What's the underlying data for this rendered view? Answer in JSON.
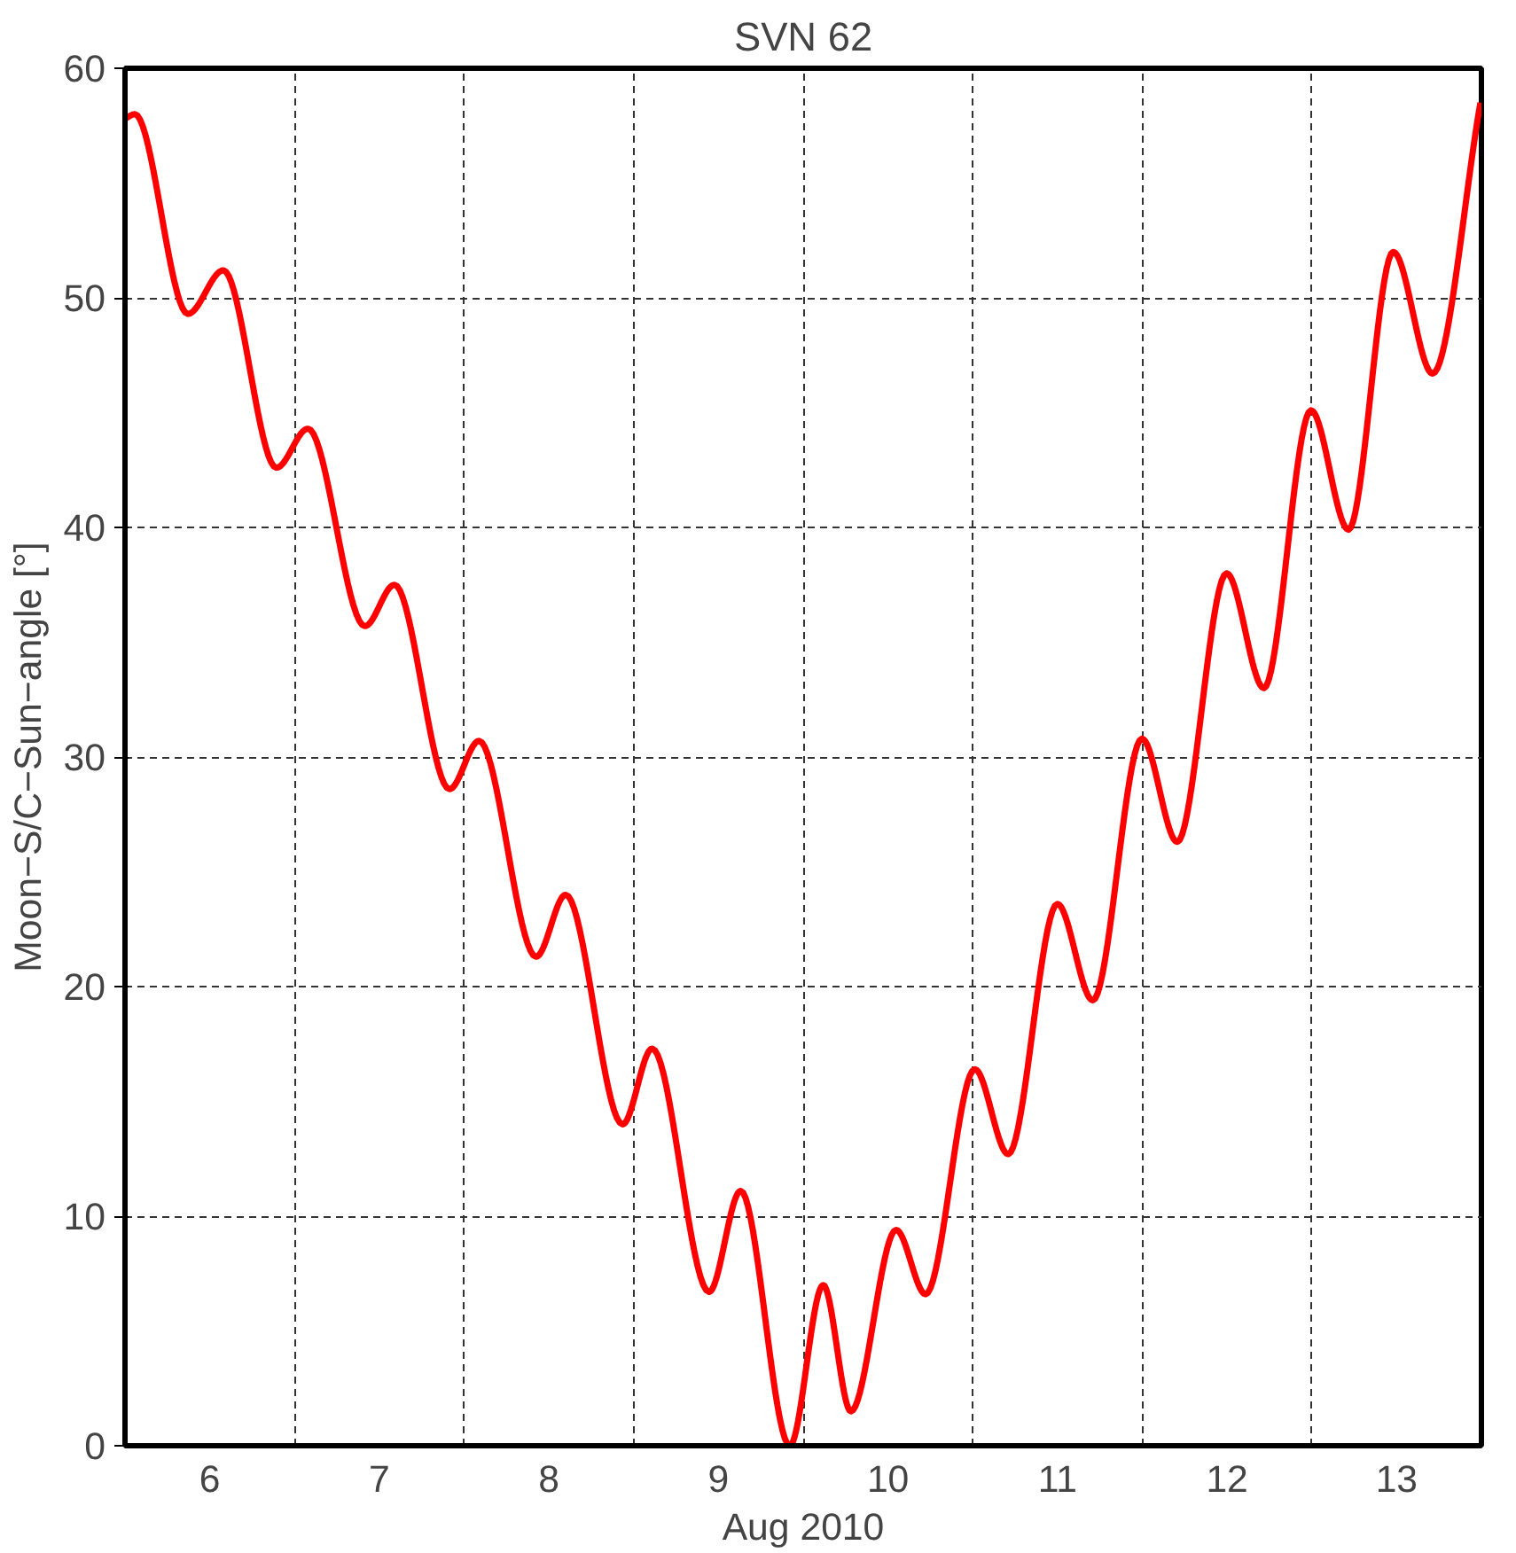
{
  "chart_data": {
    "type": "line",
    "title": "SVN 62",
    "xlabel": "Aug 2010",
    "ylabel": "Moon−S/C−Sun−angle [°]",
    "x": [
      6.0,
      6.058,
      6.371,
      6.58,
      6.893,
      7.079,
      7.415,
      7.589,
      7.914,
      8.088,
      8.425,
      8.599,
      8.935,
      9.109,
      9.445,
      9.631,
      9.921,
      10.118,
      10.281,
      10.548,
      10.722,
      11.012,
      11.209,
      11.499,
      11.708,
      11.998,
      12.206,
      12.497,
      12.717,
      12.995,
      13.216,
      13.48,
      13.712,
      13.994
    ],
    "series": [
      {
        "color": "#ff0000",
        "values": [
          57.8,
          58.0,
          49.3,
          51.2,
          42.6,
          44.3,
          35.7,
          37.5,
          28.6,
          30.7,
          21.3,
          24.0,
          14.0,
          17.3,
          6.7,
          11.1,
          0.0,
          7.0,
          1.5,
          9.4,
          6.6,
          16.4,
          12.7,
          23.6,
          19.4,
          30.8,
          26.3,
          38.0,
          33.0,
          45.1,
          39.9,
          52.0,
          46.7,
          58.5
        ]
      }
    ],
    "xlim": [
      6,
      14
    ],
    "xticks": [
      {
        "value": 6.5,
        "label": "6"
      },
      {
        "value": 7.5,
        "label": "7"
      },
      {
        "value": 8.5,
        "label": "8"
      },
      {
        "value": 9.5,
        "label": "9"
      },
      {
        "value": 10.5,
        "label": "10"
      },
      {
        "value": 11.5,
        "label": "11"
      },
      {
        "value": 12.5,
        "label": "12"
      },
      {
        "value": 13.5,
        "label": "13"
      },
      {
        "value": 7,
        "label": null
      },
      {
        "value": 8,
        "label": null
      },
      {
        "value": 9,
        "label": null
      },
      {
        "value": 10,
        "label": null
      },
      {
        "value": 11,
        "label": null
      },
      {
        "value": 12,
        "label": null
      },
      {
        "value": 13,
        "label": null
      }
    ],
    "ylim": [
      0,
      60
    ],
    "yticks": [
      0,
      10,
      20,
      30,
      40,
      50,
      60
    ],
    "grid": true,
    "line_style": "solid",
    "marker": "none"
  }
}
